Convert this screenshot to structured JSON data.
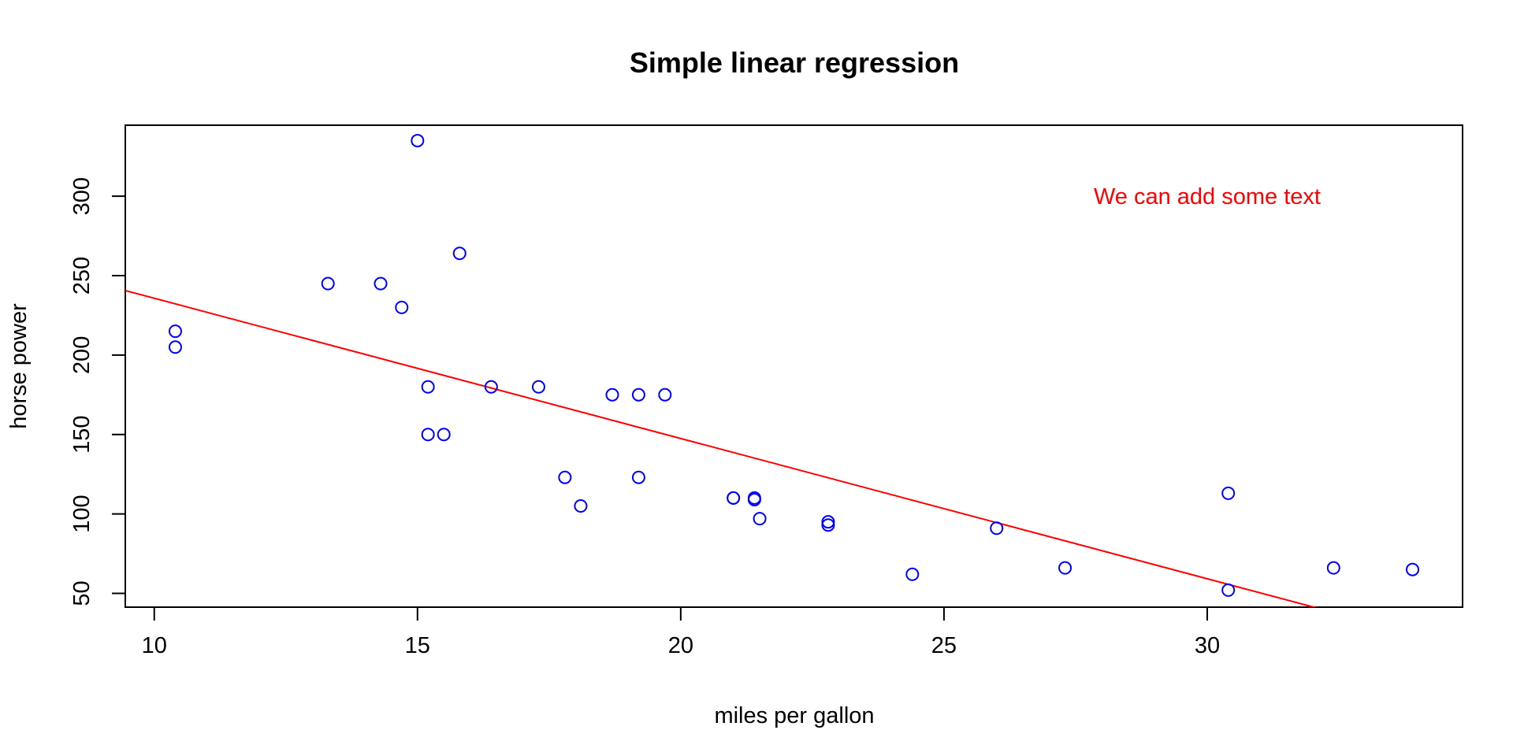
{
  "chart_data": {
    "type": "scatter",
    "title": "Simple linear regression",
    "xlabel": "miles per gallon",
    "ylabel": "horse power",
    "xlim": [
      9.45,
      34.85
    ],
    "ylim": [
      41.3,
      344.7
    ],
    "x_ticks": [
      10,
      15,
      20,
      25,
      30
    ],
    "y_ticks": [
      50,
      100,
      150,
      200,
      250,
      300
    ],
    "grid": false,
    "legend": "none",
    "point_color": "#0000ff",
    "line_color": "#ff0000",
    "series": [
      {
        "points": [
          {
            "x": 21.0,
            "y": 110
          },
          {
            "x": 21.0,
            "y": 110
          },
          {
            "x": 22.8,
            "y": 93
          },
          {
            "x": 21.4,
            "y": 110
          },
          {
            "x": 18.7,
            "y": 175
          },
          {
            "x": 18.1,
            "y": 105
          },
          {
            "x": 14.3,
            "y": 245
          },
          {
            "x": 24.4,
            "y": 62
          },
          {
            "x": 22.8,
            "y": 95
          },
          {
            "x": 19.2,
            "y": 123
          },
          {
            "x": 17.8,
            "y": 123
          },
          {
            "x": 16.4,
            "y": 180
          },
          {
            "x": 17.3,
            "y": 180
          },
          {
            "x": 15.2,
            "y": 180
          },
          {
            "x": 10.4,
            "y": 205
          },
          {
            "x": 10.4,
            "y": 215
          },
          {
            "x": 14.7,
            "y": 230
          },
          {
            "x": 32.4,
            "y": 66
          },
          {
            "x": 30.4,
            "y": 52
          },
          {
            "x": 33.9,
            "y": 65
          },
          {
            "x": 21.5,
            "y": 97
          },
          {
            "x": 15.5,
            "y": 150
          },
          {
            "x": 15.2,
            "y": 150
          },
          {
            "x": 13.3,
            "y": 245
          },
          {
            "x": 19.2,
            "y": 175
          },
          {
            "x": 27.3,
            "y": 66
          },
          {
            "x": 26.0,
            "y": 91
          },
          {
            "x": 30.4,
            "y": 113
          },
          {
            "x": 15.8,
            "y": 264
          },
          {
            "x": 19.7,
            "y": 175
          },
          {
            "x": 15.0,
            "y": 335
          },
          {
            "x": 21.4,
            "y": 109
          }
        ]
      }
    ],
    "regression_line": {
      "intercept": 324.08,
      "slope": -8.83
    },
    "annotations": [
      {
        "text": "We can add some text",
        "x": 30,
        "y": 300,
        "color": "#ff0000"
      }
    ]
  }
}
